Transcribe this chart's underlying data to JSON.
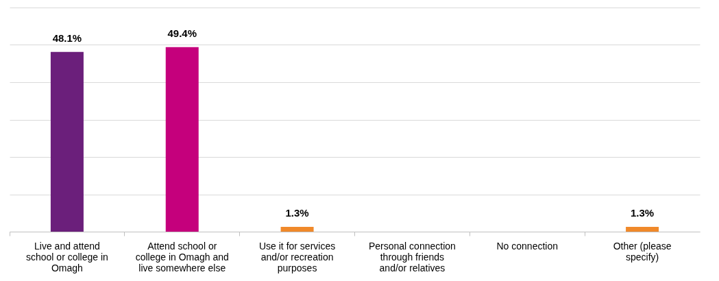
{
  "chart_data": {
    "type": "bar",
    "categories": [
      "Live and attend school or college in Omagh",
      "Attend school or college in Omagh and live somewhere else",
      "Use it for services and/or recreation purposes",
      "Personal connection through friends and/or relatives",
      "No connection",
      "Other (please specify)"
    ],
    "values": [
      48.1,
      49.4,
      1.3,
      null,
      null,
      1.3
    ],
    "colors": [
      "#6b1f7b",
      "#c5007c",
      "#f0892a",
      "#f0892a",
      "#f0892a",
      "#f0892a"
    ],
    "value_labels": [
      "48.1%",
      "49.4%",
      "1.3%",
      null,
      null,
      "1.3%"
    ],
    "ylim": [
      0,
      60
    ],
    "yticks": [
      {
        "value": 0,
        "label": null
      },
      {
        "value": 10,
        "label": null
      },
      {
        "value": 20,
        "label": null
      },
      {
        "value": 30,
        "label": null
      },
      {
        "value": 40,
        "label": null
      },
      {
        "value": 50,
        "label": null
      },
      {
        "value": 60,
        "label": null
      }
    ],
    "grid": "y",
    "tick_labels": "x"
  }
}
